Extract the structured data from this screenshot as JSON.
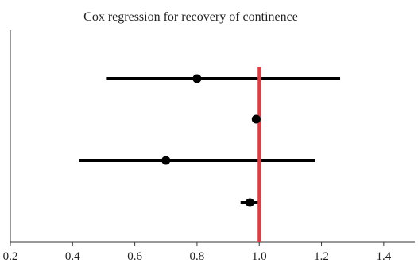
{
  "chart_data": {
    "type": "forest",
    "title": "Cox regression for recovery of continence",
    "xlabel": "",
    "ylabel": "",
    "xlim": [
      0.2,
      1.5
    ],
    "x_ticks": [
      0.2,
      0.4,
      0.6,
      0.8,
      1.0,
      1.2,
      1.4
    ],
    "x_tick_labels": [
      "0.2",
      "0.4",
      "0.6",
      "0.8",
      "1.0",
      "1.2",
      "1.4"
    ],
    "reference_line": {
      "x": 1.0,
      "color": "#e8393f"
    },
    "points": [
      {
        "estimate": 0.8,
        "lower": 0.51,
        "upper": 1.26
      },
      {
        "estimate": 0.99,
        "lower": 0.99,
        "upper": 0.99
      },
      {
        "estimate": 0.7,
        "lower": 0.42,
        "upper": 1.18
      },
      {
        "estimate": 0.97,
        "lower": 0.94,
        "upper": 1.0
      }
    ],
    "colors": {
      "marker": "#000000",
      "axis": "#333333"
    },
    "grid": false,
    "legend": "none"
  }
}
